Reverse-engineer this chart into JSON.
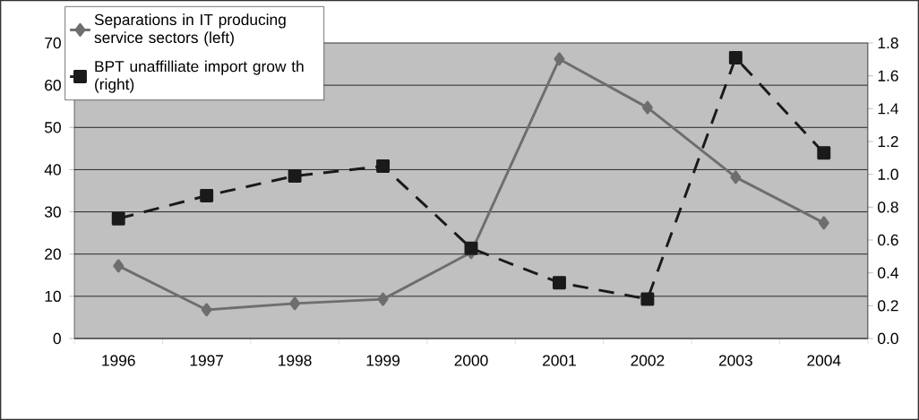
{
  "chart_data": {
    "type": "line",
    "categories": [
      "1996",
      "1997",
      "1998",
      "1999",
      "2000",
      "2001",
      "2002",
      "2003",
      "2004"
    ],
    "series": [
      {
        "name": "Separations in IT producing service sectors (left)",
        "color": "#6e6e6e",
        "marker": "diamond",
        "line_style": "solid",
        "values": [
          17.2,
          6.8,
          8.3,
          9.3,
          20.4,
          66.2,
          54.7,
          38.2,
          27.4
        ]
      },
      {
        "name": "BPT unaffilliate import grow th (right)",
        "color": "#1a1a1a",
        "marker": "square",
        "line_style": "dashed",
        "axis": "y2",
        "values": [
          0.73,
          0.87,
          0.99,
          1.05,
          0.55,
          0.34,
          0.24,
          1.71,
          1.13
        ]
      }
    ],
    "ylim": [
      0,
      70
    ],
    "yticks": [
      0,
      10,
      20,
      30,
      40,
      50,
      60,
      70
    ],
    "y2lim": [
      0,
      1.8
    ],
    "y2ticks": [
      {
        "value": 0,
        "label": "0.0"
      },
      {
        "value": 0.2,
        "label": "0.2"
      },
      {
        "value": 0.4,
        "label": "0.4"
      },
      {
        "value": 0.6,
        "label": "0.6"
      },
      {
        "value": 0.8,
        "label": "0.8"
      },
      {
        "value": 1.0,
        "label": "1.0"
      },
      {
        "value": 1.2,
        "label": "1.2"
      },
      {
        "value": 1.4,
        "label": "1.4"
      },
      {
        "value": 1.6,
        "label": "1.6"
      },
      {
        "value": 1.8,
        "label": "1.8"
      }
    ],
    "grid": "y",
    "legend": "top left"
  }
}
